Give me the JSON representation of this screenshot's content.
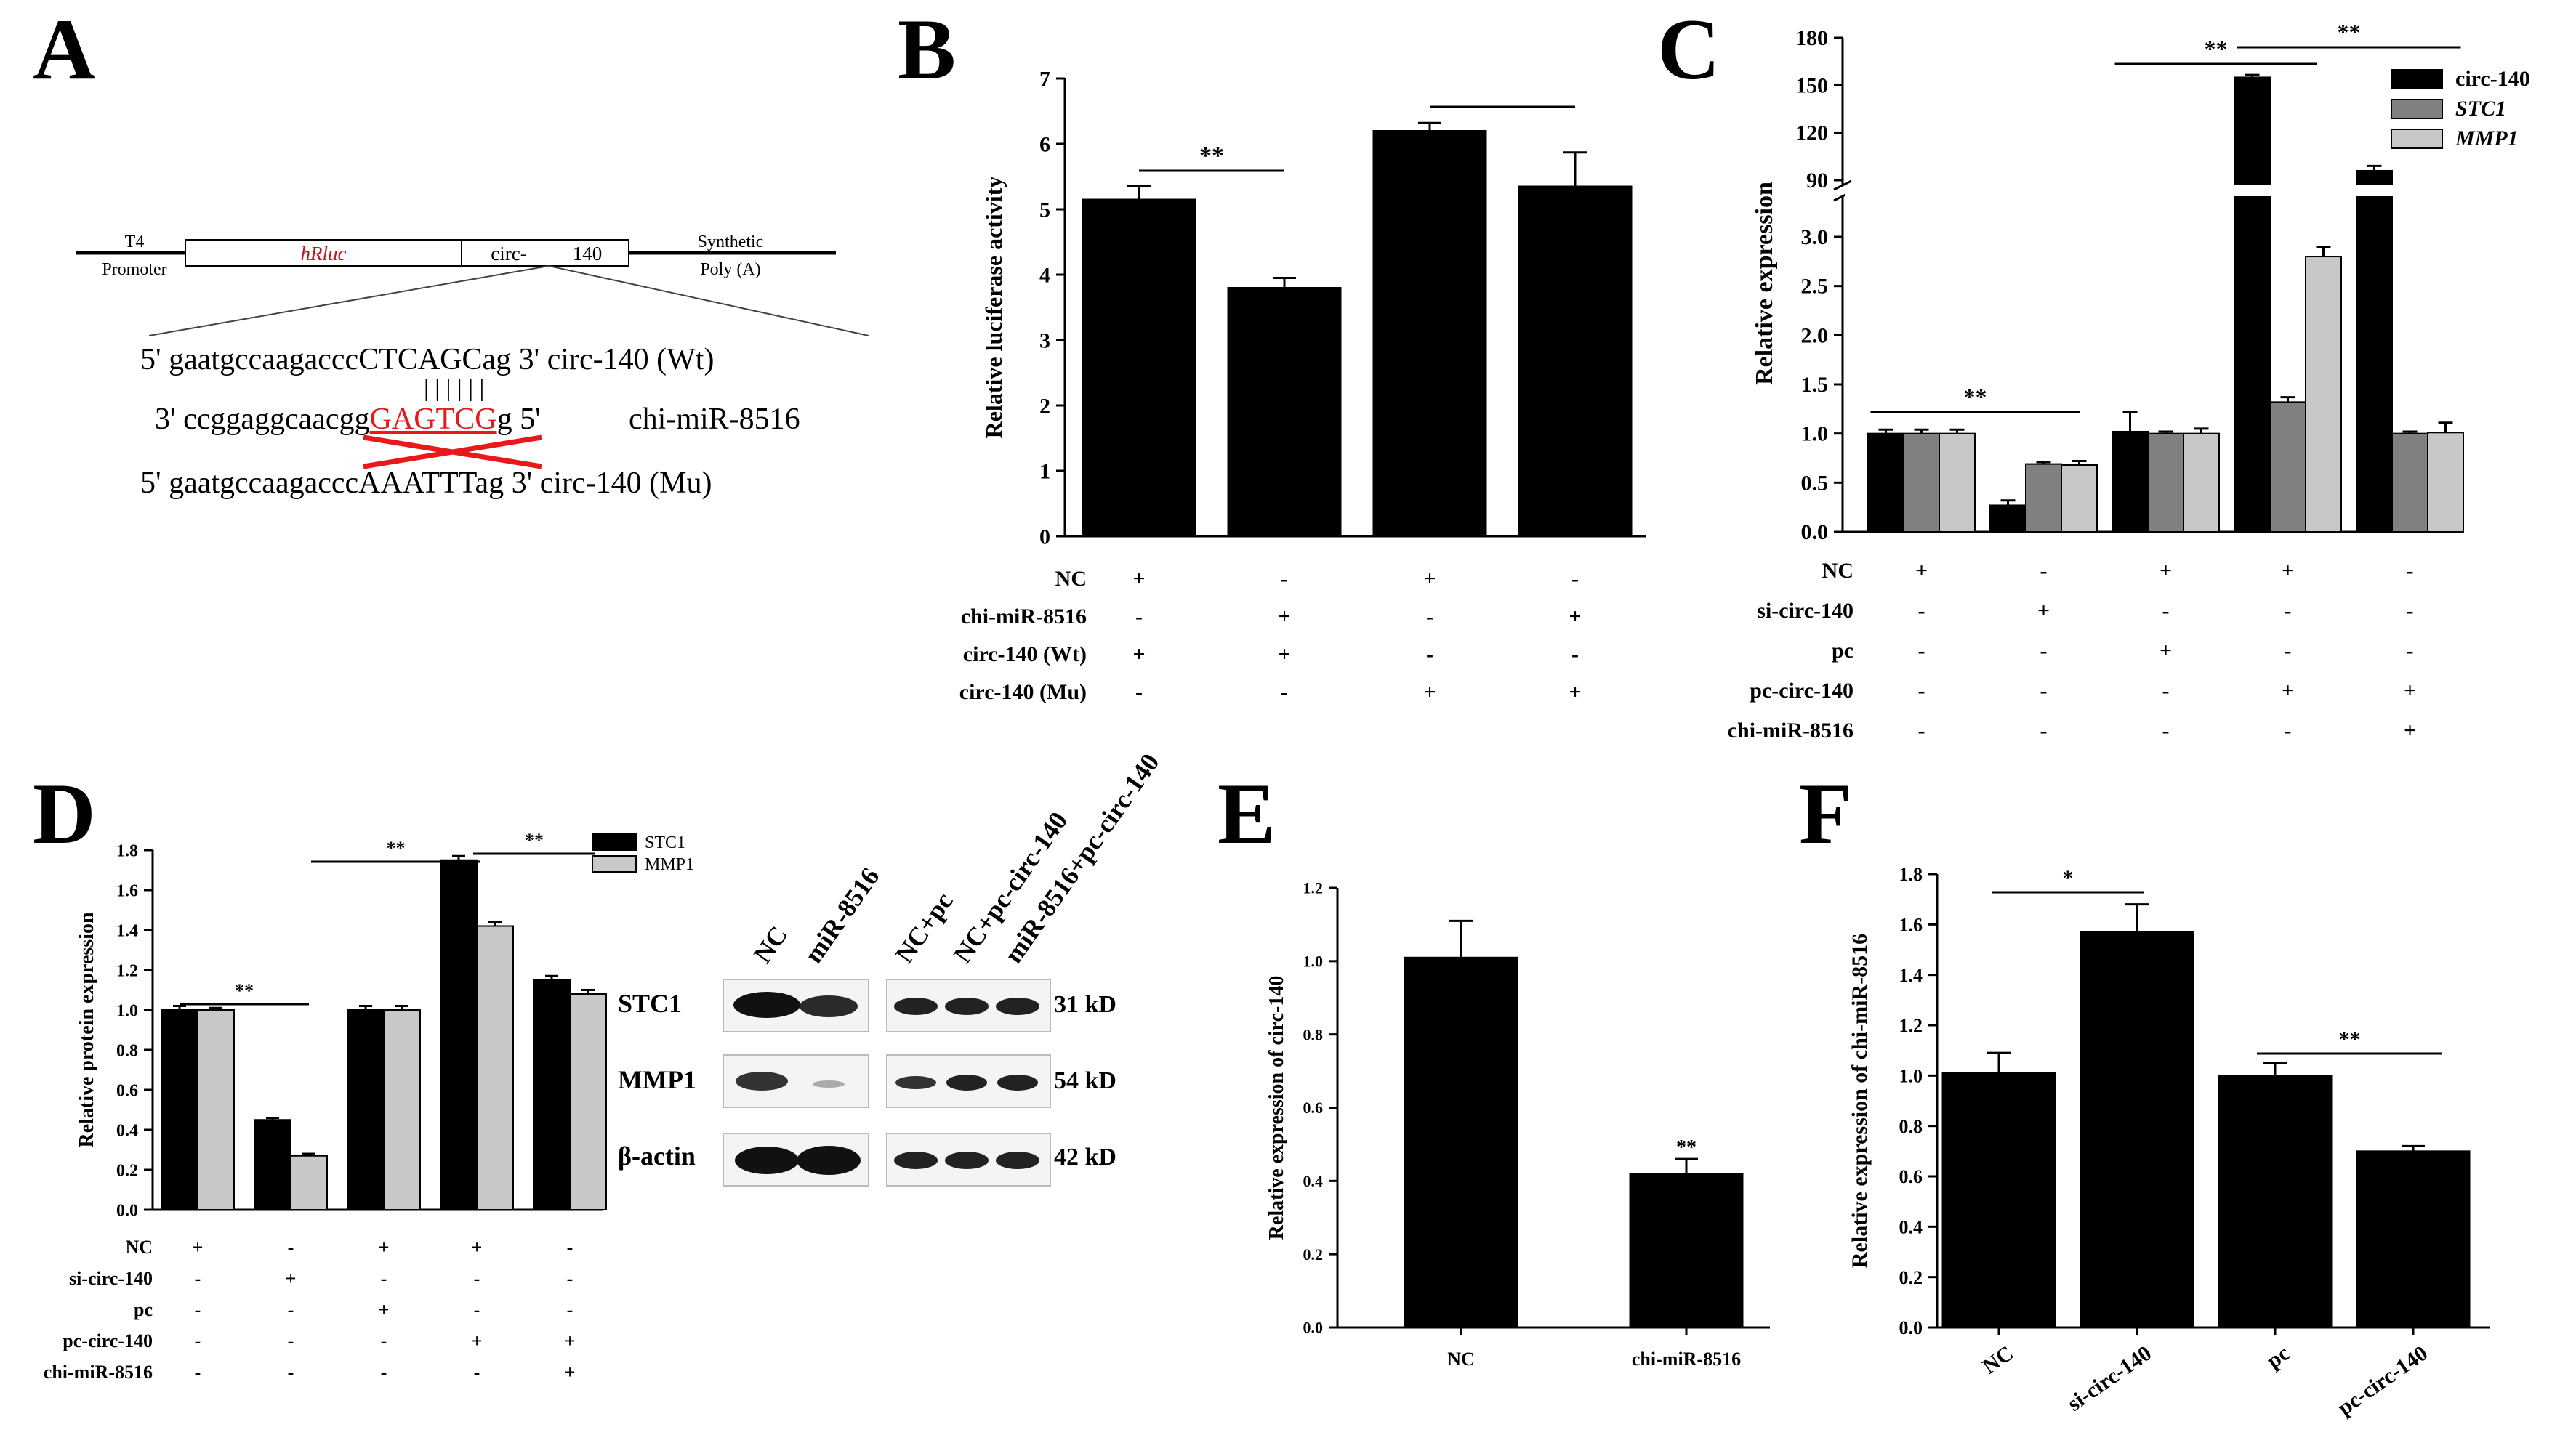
{
  "panels": {
    "A": {
      "letter": "A",
      "construct": {
        "left_label1": "T4",
        "left_label2": "Promoter",
        "gene": "hRluc",
        "insert_a": "circ-",
        "insert_b": "140",
        "right_label1": "Synthetic",
        "right_label2": "Poly (A)"
      },
      "seq_wt": {
        "prefix": "5' gaatgccaagaccc",
        "site": "CTCAGC",
        "suffix": "ag 3' circ-140 (Wt)"
      },
      "seq_mir": {
        "prefix": "3' ccggaggcaacgg",
        "site": "GAGTCG",
        "suffix": "g 5'",
        "name": "chi-miR-8516"
      },
      "seq_mu": {
        "prefix": "5' gaatgccaagaccc",
        "site": "AAATTT",
        "suffix": "ag 3' circ-140 (Mu)"
      },
      "site_color": "#e8191b",
      "pairing_marks": "| | | | | |"
    },
    "D_blot": {
      "lanes_left": [
        "NC",
        "miR-8516"
      ],
      "lanes_right": [
        "NC+pc",
        "NC+pc-circ-140",
        "miR-8516+pc-circ-140"
      ],
      "rows": [
        {
          "protein": "STC1",
          "size": "31 kD"
        },
        {
          "protein": "MMP1",
          "size": "54 kD"
        },
        {
          "protein": "β-actin",
          "size": "42 kD"
        }
      ]
    }
  },
  "chart_data": [
    {
      "panel": "B",
      "type": "bar",
      "title": "",
      "ylabel": "Relative luciferase activity",
      "ylim": [
        0,
        7
      ],
      "yticks": [
        0,
        1,
        2,
        3,
        4,
        5,
        6,
        7
      ],
      "series": [
        {
          "values": [
            5.15,
            3.8,
            6.2,
            5.35
          ],
          "errors": [
            0.2,
            0.15,
            0.12,
            0.52
          ]
        }
      ],
      "significance": [
        {
          "groups": [
            0,
            1
          ],
          "label": "**"
        },
        {
          "groups": [
            2,
            3
          ],
          "label": ""
        }
      ],
      "conditions": [
        {
          "label": "NC",
          "values": [
            "+",
            "-",
            "+",
            "-"
          ]
        },
        {
          "label": "chi-miR-8516",
          "values": [
            "-",
            "+",
            "-",
            "+"
          ]
        },
        {
          "label": "circ-140 (Wt)",
          "values": [
            "+",
            "+",
            "-",
            "-"
          ]
        },
        {
          "label": "circ-140 (Mu)",
          "values": [
            "-",
            "-",
            "+",
            "+"
          ]
        }
      ]
    },
    {
      "panel": "C",
      "type": "bar",
      "title": "",
      "ylabel": "Relative expression",
      "y_axis_break": true,
      "yticks_lower": [
        "0.0",
        "0.5",
        "1.0",
        "1.5",
        "2.0",
        "2.5",
        "3.0"
      ],
      "yticks_upper": [
        "90",
        "120",
        "150",
        "180"
      ],
      "legend_placement": "top-right",
      "series": [
        {
          "name": "circ-140",
          "color": "#000000",
          "values": [
            1.0,
            0.27,
            1.02,
            155,
            96
          ],
          "errors": [
            0.04,
            0.05,
            0.2,
            1.5,
            3
          ]
        },
        {
          "name": "STC1",
          "color": "#808080",
          "values": [
            1.0,
            0.69,
            1.0,
            1.32,
            1.0
          ],
          "errors": [
            0.04,
            0.02,
            0.02,
            0.05,
            0.02
          ]
        },
        {
          "name": "MMP1",
          "color": "#c8c8c8",
          "values": [
            1.0,
            0.68,
            1.0,
            2.8,
            1.01
          ],
          "errors": [
            0.04,
            0.04,
            0.05,
            0.1,
            0.1
          ]
        }
      ],
      "significance": [
        {
          "groups": [
            0,
            1
          ],
          "label": "**"
        },
        {
          "groups": [
            2,
            3
          ],
          "label": "**"
        },
        {
          "groups": [
            3,
            4
          ],
          "label": "**"
        }
      ],
      "conditions": [
        {
          "label": "NC",
          "values": [
            "+",
            "-",
            "+",
            "+",
            "-"
          ]
        },
        {
          "label": "si-circ-140",
          "values": [
            "-",
            "+",
            "-",
            "-",
            "-"
          ]
        },
        {
          "label": "pc",
          "values": [
            "-",
            "-",
            "+",
            "-",
            "-"
          ]
        },
        {
          "label": "pc-circ-140",
          "values": [
            "-",
            "-",
            "-",
            "+",
            "+"
          ]
        },
        {
          "label": "chi-miR-8516",
          "values": [
            "-",
            "-",
            "-",
            "-",
            "+"
          ]
        }
      ]
    },
    {
      "panel": "D",
      "type": "bar",
      "title": "",
      "ylabel": "Relative protein expression",
      "ylim": [
        0,
        1.8
      ],
      "yticks": [
        "0.0",
        "0.2",
        "0.4",
        "0.6",
        "0.8",
        "1.0",
        "1.2",
        "1.4",
        "1.6",
        "1.8"
      ],
      "legend_placement": "top-right",
      "series": [
        {
          "name": "STC1",
          "color": "#000000",
          "values": [
            1.0,
            0.45,
            1.0,
            1.75,
            1.15
          ],
          "errors": [
            0.02,
            0.01,
            0.02,
            0.02,
            0.02
          ]
        },
        {
          "name": "MMP1",
          "color": "#c8c8c8",
          "values": [
            1.0,
            0.27,
            1.0,
            1.42,
            1.08
          ],
          "errors": [
            0.01,
            0.01,
            0.02,
            0.02,
            0.02
          ]
        }
      ],
      "significance": [
        {
          "groups": [
            0,
            1
          ],
          "label": "**"
        },
        {
          "groups": [
            2,
            3
          ],
          "label": "**"
        },
        {
          "groups": [
            3,
            4
          ],
          "label": "**"
        }
      ],
      "conditions": [
        {
          "label": "NC",
          "values": [
            "+",
            "-",
            "+",
            "+",
            "-"
          ]
        },
        {
          "label": "si-circ-140",
          "values": [
            "-",
            "+",
            "-",
            "-",
            "-"
          ]
        },
        {
          "label": "pc",
          "values": [
            "-",
            "-",
            "+",
            "-",
            "-"
          ]
        },
        {
          "label": "pc-circ-140",
          "values": [
            "-",
            "-",
            "-",
            "+",
            "+"
          ]
        },
        {
          "label": "chi-miR-8516",
          "values": [
            "-",
            "-",
            "-",
            "-",
            "+"
          ]
        }
      ]
    },
    {
      "panel": "E",
      "type": "bar",
      "title": "",
      "ylabel": "Relative expression of circ-140",
      "ylim": [
        0,
        1.2
      ],
      "yticks": [
        "0.0",
        "0.2",
        "0.4",
        "0.6",
        "0.8",
        "1.0",
        "1.2"
      ],
      "categories": [
        "NC",
        "chi-miR-8516"
      ],
      "series": [
        {
          "values": [
            1.01,
            0.42
          ],
          "errors": [
            0.1,
            0.04
          ]
        }
      ],
      "annotations": [
        {
          "index": 1,
          "label": "**"
        }
      ]
    },
    {
      "panel": "F",
      "type": "bar",
      "title": "",
      "ylabel": "Relative expression of chi-miR-8516",
      "ylim": [
        0,
        1.8
      ],
      "yticks": [
        "0.0",
        "0.2",
        "0.4",
        "0.6",
        "0.8",
        "1.0",
        "1.2",
        "1.4",
        "1.6",
        "1.8"
      ],
      "categories": [
        "NC",
        "si-circ-140",
        "pc",
        "pc-circ-140"
      ],
      "series": [
        {
          "values": [
            1.01,
            1.57,
            1.0,
            0.7
          ],
          "errors": [
            0.08,
            0.11,
            0.05,
            0.02
          ]
        }
      ],
      "significance": [
        {
          "groups": [
            0,
            1
          ],
          "label": "*"
        },
        {
          "groups": [
            2,
            3
          ],
          "label": "**"
        }
      ]
    }
  ]
}
